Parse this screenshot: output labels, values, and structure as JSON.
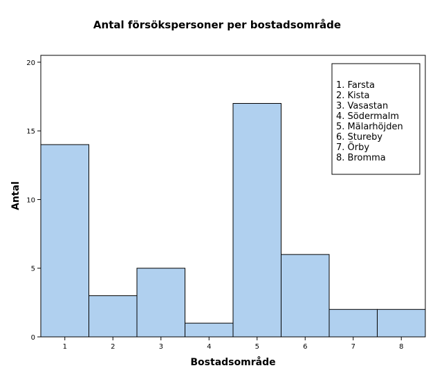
{
  "chart_data": {
    "type": "bar",
    "title": "Antal försökspersoner per bostadsområde",
    "xlabel": "Bostadsområde",
    "ylabel": "Antal",
    "categories": [
      "1",
      "2",
      "3",
      "4",
      "5",
      "6",
      "7",
      "8"
    ],
    "values": [
      14,
      3,
      5,
      1,
      17,
      6,
      2,
      2
    ],
    "yticks": [
      "0",
      "5",
      "10",
      "15",
      "20"
    ],
    "ylim": [
      0,
      20.5
    ],
    "grid": false,
    "legend_position": "top-right",
    "legend_items": [
      "1. Farsta",
      "2. Kista",
      "3. Vasastan",
      "4. Södermalm",
      "5. Mälarhöjden",
      "6. Stureby",
      "7. Örby",
      "8. Bromma"
    ],
    "bar_color": "#b0d0ef",
    "bar_stroke": "#000000"
  }
}
